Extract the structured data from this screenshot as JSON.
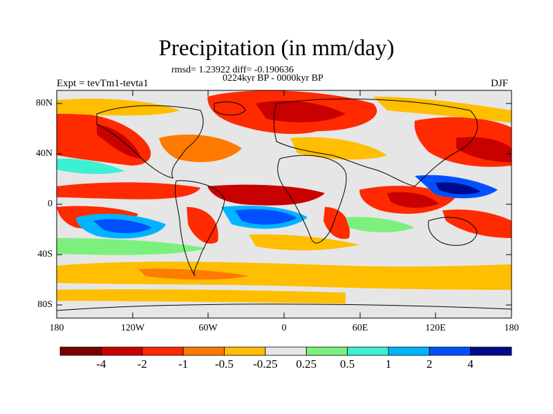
{
  "title": "Precipitation (in mm/day)",
  "stats": "rmsd= 1.23922 diff= -0.190636",
  "period": "0224kyr BP - 0000kyr BP",
  "experiment": "Expt = tevTm1-tevta1",
  "season": "DJF",
  "lat_labels": [
    "80N",
    "40N",
    "0",
    "40S",
    "80S"
  ],
  "lon_labels": [
    "180",
    "120W",
    "60W",
    "0",
    "60E",
    "120E",
    "180"
  ],
  "colorbar": {
    "labels": [
      "-4",
      "-2",
      "-1",
      "-0.5",
      "-0.25",
      "0.25",
      "0.5",
      "1",
      "2",
      "4"
    ],
    "colors": [
      "#7a0000",
      "#c80000",
      "#ff2a00",
      "#ff7a00",
      "#ffbe00",
      "#e6e6e6",
      "#7cf07c",
      "#3cf0d2",
      "#00b4ff",
      "#0050ff",
      "#000a8c"
    ]
  }
}
